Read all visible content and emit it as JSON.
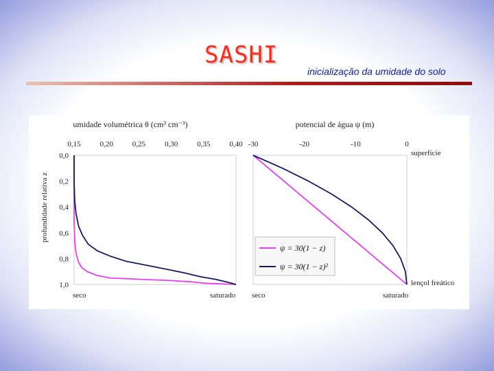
{
  "header": {
    "title": "SASHI",
    "subtitle": "inicialização da umidade do solo"
  },
  "colors": {
    "title": "#ff2a1a",
    "subtitle": "#0d1a99",
    "bar": "#b31818",
    "series_navy": "#17185e",
    "series_magenta": "#ea3df0"
  },
  "chart_data": [
    {
      "type": "line",
      "title": "umidade volumétrica θ (cm³ cm⁻³)",
      "ylabel": "profundidade relativa z",
      "xlim": [
        0.15,
        0.4
      ],
      "ylim": [
        0.0,
        1.0
      ],
      "y_inverted": true,
      "x_axis_position": "top",
      "xticks": [
        "0,15",
        "0,20",
        "0,25",
        "0,30",
        "0,35",
        "0,40"
      ],
      "yticks": [
        "0,0",
        "0,2",
        "0,4",
        "0,6",
        "0,8",
        "1,0"
      ],
      "bottom_labels": [
        "seco",
        "saturado"
      ],
      "series": [
        {
          "color": "#ea3df0",
          "points": [
            [
              0.15,
              0.0
            ],
            [
              0.15,
              0.5
            ],
            [
              0.151,
              0.65
            ],
            [
              0.152,
              0.72
            ],
            [
              0.154,
              0.78
            ],
            [
              0.157,
              0.83
            ],
            [
              0.162,
              0.87
            ],
            [
              0.17,
              0.9
            ],
            [
              0.185,
              0.93
            ],
            [
              0.205,
              0.95
            ],
            [
              0.25,
              0.96
            ],
            [
              0.3,
              0.97
            ],
            [
              0.33,
              0.98
            ],
            [
              0.35,
              0.99
            ],
            [
              0.4,
              1.0
            ]
          ]
        },
        {
          "color": "#17185e",
          "points": [
            [
              0.15,
              0.0
            ],
            [
              0.15,
              0.2
            ],
            [
              0.151,
              0.35
            ],
            [
              0.153,
              0.45
            ],
            [
              0.157,
              0.55
            ],
            [
              0.163,
              0.62
            ],
            [
              0.172,
              0.69
            ],
            [
              0.186,
              0.74
            ],
            [
              0.205,
              0.78
            ],
            [
              0.23,
              0.82
            ],
            [
              0.26,
              0.85
            ],
            [
              0.29,
              0.88
            ],
            [
              0.32,
              0.91
            ],
            [
              0.345,
              0.94
            ],
            [
              0.368,
              0.96
            ],
            [
              0.385,
              0.98
            ],
            [
              0.4,
              1.0
            ]
          ]
        }
      ]
    },
    {
      "type": "line",
      "title": "potencial de água ψ (m)",
      "xlim": [
        -30,
        0
      ],
      "ylim": [
        0.0,
        1.0
      ],
      "y_inverted": true,
      "x_axis_position": "top",
      "xticks": [
        "-30",
        "-20",
        "-10",
        "0"
      ],
      "bottom_labels": [
        "seco",
        "saturado"
      ],
      "annotations": [
        "superfície",
        "lençol freático"
      ],
      "legend_position": "bottom-left",
      "series": [
        {
          "name": "ψ = 30(1 − z)",
          "color": "#ea3df0",
          "points": [
            [
              -30,
              0.0
            ],
            [
              -27,
              0.1
            ],
            [
              -24,
              0.2
            ],
            [
              -21,
              0.3
            ],
            [
              -18,
              0.4
            ],
            [
              -15,
              0.5
            ],
            [
              -12,
              0.6
            ],
            [
              -9,
              0.7
            ],
            [
              -6,
              0.8
            ],
            [
              -3,
              0.9
            ],
            [
              0,
              1.0
            ]
          ]
        },
        {
          "name": "ψ = 30(1 − z)²",
          "color": "#17185e",
          "points": [
            [
              -30,
              0.0
            ],
            [
              -24.3,
              0.1
            ],
            [
              -19.2,
              0.2
            ],
            [
              -14.7,
              0.3
            ],
            [
              -10.8,
              0.4
            ],
            [
              -7.5,
              0.5
            ],
            [
              -4.8,
              0.6
            ],
            [
              -2.7,
              0.7
            ],
            [
              -1.2,
              0.8
            ],
            [
              -0.3,
              0.9
            ],
            [
              0,
              1.0
            ]
          ]
        }
      ]
    }
  ]
}
